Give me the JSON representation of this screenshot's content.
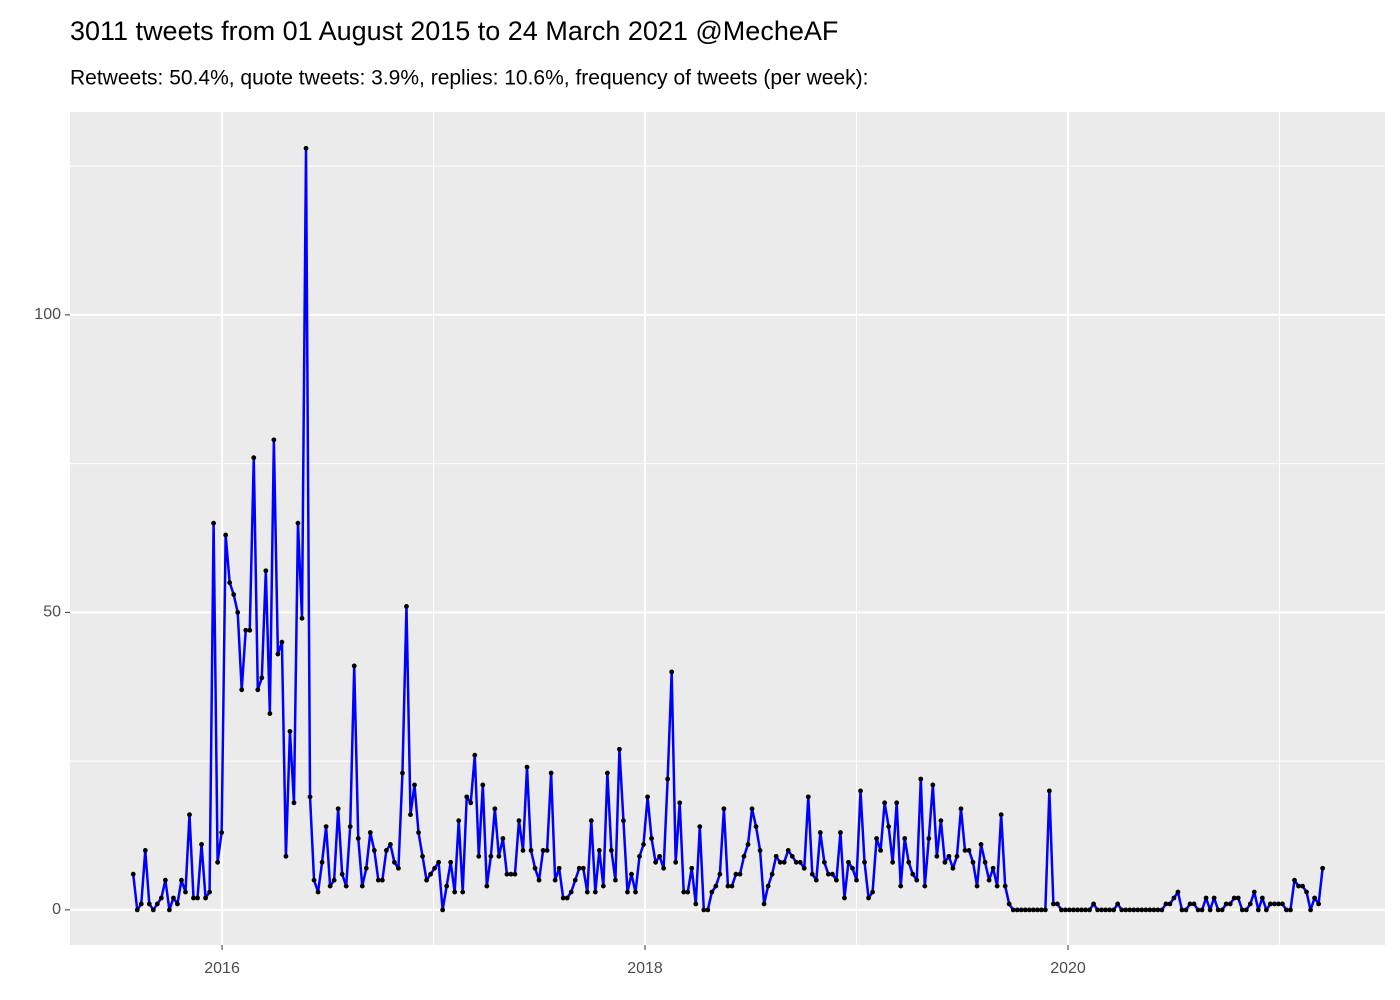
{
  "chart_data": {
    "type": "line",
    "title": "3011 tweets from 01 August 2015 to 24 March 2021 @MecheAF",
    "subtitle": "Retweets: 50.4%, quote tweets: 3.9%, replies: 10.6%, frequency of tweets (per week):",
    "color": "blue",
    "point_color": "black",
    "panel_color": "#ebebeb",
    "grid": true,
    "xlim": [
      2015.281,
      2021.499
    ],
    "xticks": [
      2016,
      2018,
      2020
    ],
    "minor_xticks": [
      2017,
      2019,
      2021
    ],
    "ylim": [
      -5.9,
      134.1
    ],
    "yticks": [
      0,
      50,
      100
    ],
    "minor_yticks": [
      25,
      75,
      125
    ],
    "x": [
      2015.58,
      2015.599,
      2015.618,
      2015.637,
      2015.656,
      2015.675,
      2015.694,
      2015.713,
      2015.732,
      2015.751,
      2015.77,
      2015.789,
      2015.808,
      2015.827,
      2015.846,
      2015.865,
      2015.884,
      2015.903,
      2015.922,
      2015.941,
      2015.96,
      2015.979,
      2015.998,
      2016.017,
      2016.036,
      2016.055,
      2016.074,
      2016.093,
      2016.112,
      2016.131,
      2016.15,
      2016.169,
      2016.188,
      2016.207,
      2016.226,
      2016.245,
      2016.264,
      2016.283,
      2016.302,
      2016.321,
      2016.34,
      2016.359,
      2016.378,
      2016.397,
      2016.416,
      2016.435,
      2016.454,
      2016.473,
      2016.492,
      2016.511,
      2016.53,
      2016.549,
      2016.568,
      2016.587,
      2016.606,
      2016.625,
      2016.644,
      2016.663,
      2016.682,
      2016.701,
      2016.72,
      2016.739,
      2016.758,
      2016.777,
      2016.796,
      2016.815,
      2016.834,
      2016.853,
      2016.872,
      2016.891,
      2016.91,
      2016.929,
      2016.948,
      2016.967,
      2016.986,
      2017.005,
      2017.024,
      2017.043,
      2017.062,
      2017.081,
      2017.1,
      2017.119,
      2017.138,
      2017.157,
      2017.176,
      2017.195,
      2017.214,
      2017.233,
      2017.252,
      2017.271,
      2017.29,
      2017.309,
      2017.328,
      2017.347,
      2017.366,
      2017.385,
      2017.404,
      2017.423,
      2017.442,
      2017.461,
      2017.48,
      2017.499,
      2017.518,
      2017.537,
      2017.556,
      2017.575,
      2017.594,
      2017.613,
      2017.632,
      2017.651,
      2017.67,
      2017.689,
      2017.708,
      2017.727,
      2017.746,
      2017.765,
      2017.784,
      2017.803,
      2017.822,
      2017.841,
      2017.86,
      2017.879,
      2017.898,
      2017.917,
      2017.936,
      2017.955,
      2017.974,
      2017.993,
      2018.012,
      2018.031,
      2018.05,
      2018.069,
      2018.088,
      2018.107,
      2018.126,
      2018.145,
      2018.164,
      2018.183,
      2018.202,
      2018.221,
      2018.24,
      2018.259,
      2018.278,
      2018.297,
      2018.316,
      2018.335,
      2018.354,
      2018.373,
      2018.392,
      2018.411,
      2018.43,
      2018.449,
      2018.468,
      2018.487,
      2018.506,
      2018.525,
      2018.544,
      2018.563,
      2018.582,
      2018.601,
      2018.62,
      2018.639,
      2018.658,
      2018.677,
      2018.696,
      2018.715,
      2018.734,
      2018.753,
      2018.772,
      2018.791,
      2018.81,
      2018.829,
      2018.848,
      2018.867,
      2018.886,
      2018.905,
      2018.924,
      2018.943,
      2018.962,
      2018.981,
      2019.0,
      2019.019,
      2019.038,
      2019.057,
      2019.076,
      2019.095,
      2019.114,
      2019.133,
      2019.152,
      2019.171,
      2019.19,
      2019.209,
      2019.228,
      2019.247,
      2019.266,
      2019.285,
      2019.304,
      2019.323,
      2019.342,
      2019.361,
      2019.38,
      2019.399,
      2019.418,
      2019.437,
      2019.456,
      2019.475,
      2019.494,
      2019.513,
      2019.532,
      2019.551,
      2019.57,
      2019.589,
      2019.608,
      2019.627,
      2019.646,
      2019.665,
      2019.684,
      2019.703,
      2019.722,
      2019.741,
      2019.76,
      2019.779,
      2019.798,
      2019.817,
      2019.836,
      2019.855,
      2019.874,
      2019.893,
      2019.912,
      2019.931,
      2019.95,
      2019.969,
      2019.988,
      2020.007,
      2020.026,
      2020.045,
      2020.064,
      2020.083,
      2020.102,
      2020.121,
      2020.14,
      2020.159,
      2020.178,
      2020.197,
      2020.216,
      2020.235,
      2020.254,
      2020.273,
      2020.292,
      2020.311,
      2020.33,
      2020.349,
      2020.368,
      2020.387,
      2020.406,
      2020.425,
      2020.444,
      2020.463,
      2020.482,
      2020.501,
      2020.52,
      2020.539,
      2020.558,
      2020.577,
      2020.596,
      2020.615,
      2020.634,
      2020.653,
      2020.672,
      2020.691,
      2020.71,
      2020.729,
      2020.748,
      2020.767,
      2020.786,
      2020.805,
      2020.824,
      2020.843,
      2020.862,
      2020.881,
      2020.9,
      2020.919,
      2020.938,
      2020.957,
      2020.976,
      2020.995,
      2021.014,
      2021.033,
      2021.052,
      2021.071,
      2021.09,
      2021.109,
      2021.128,
      2021.147,
      2021.166,
      2021.185,
      2021.204
    ],
    "values": [
      6,
      0,
      1,
      10,
      1,
      0,
      1,
      2,
      5,
      0,
      2,
      1,
      5,
      3,
      16,
      2,
      2,
      11,
      2,
      3,
      65,
      8,
      13,
      63,
      55,
      53,
      50,
      37,
      47,
      47,
      76,
      37,
      39,
      57,
      33,
      79,
      43,
      45,
      9,
      30,
      18,
      65,
      49,
      128,
      19,
      5,
      3,
      8,
      14,
      4,
      5,
      17,
      6,
      4,
      14,
      41,
      12,
      4,
      7,
      13,
      10,
      5,
      5,
      10,
      11,
      8,
      7,
      23,
      51,
      16,
      21,
      13,
      9,
      5,
      6,
      7,
      8,
      0,
      4,
      8,
      3,
      15,
      3,
      19,
      18,
      26,
      9,
      21,
      4,
      9,
      17,
      9,
      12,
      6,
      6,
      6,
      15,
      10,
      24,
      10,
      7,
      5,
      10,
      10,
      23,
      5,
      7,
      2,
      2,
      3,
      5,
      7,
      7,
      3,
      15,
      3,
      10,
      4,
      23,
      10,
      5,
      27,
      15,
      3,
      6,
      3,
      9,
      11,
      19,
      12,
      8,
      9,
      7,
      22,
      40,
      8,
      18,
      3,
      3,
      7,
      1,
      14,
      0,
      0,
      3,
      4,
      6,
      17,
      4,
      4,
      6,
      6,
      9,
      11,
      17,
      14,
      10,
      1,
      4,
      6,
      9,
      8,
      8,
      10,
      9,
      8,
      8,
      7,
      19,
      6,
      5,
      13,
      8,
      6,
      6,
      5,
      13,
      2,
      8,
      7,
      5,
      20,
      8,
      2,
      3,
      12,
      10,
      18,
      14,
      8,
      18,
      4,
      12,
      8,
      6,
      5,
      22,
      4,
      12,
      21,
      9,
      15,
      8,
      9,
      7,
      9,
      17,
      10,
      10,
      8,
      4,
      11,
      8,
      5,
      7,
      4,
      16,
      4,
      1,
      0,
      0,
      0,
      0,
      0,
      0,
      0,
      0,
      0,
      20,
      1,
      1,
      0,
      0,
      0,
      0,
      0,
      0,
      0,
      0,
      1,
      0,
      0,
      0,
      0,
      0,
      1,
      0,
      0,
      0,
      0,
      0,
      0,
      0,
      0,
      0,
      0,
      0,
      1,
      1,
      2,
      3,
      0,
      0,
      1,
      1,
      0,
      0,
      2,
      0,
      2,
      0,
      0,
      1,
      1,
      2,
      2,
      0,
      0,
      1,
      3,
      0,
      2,
      0,
      1,
      1,
      1,
      1,
      0,
      0,
      5,
      4,
      4,
      3,
      0,
      2,
      1,
      7
    ]
  }
}
